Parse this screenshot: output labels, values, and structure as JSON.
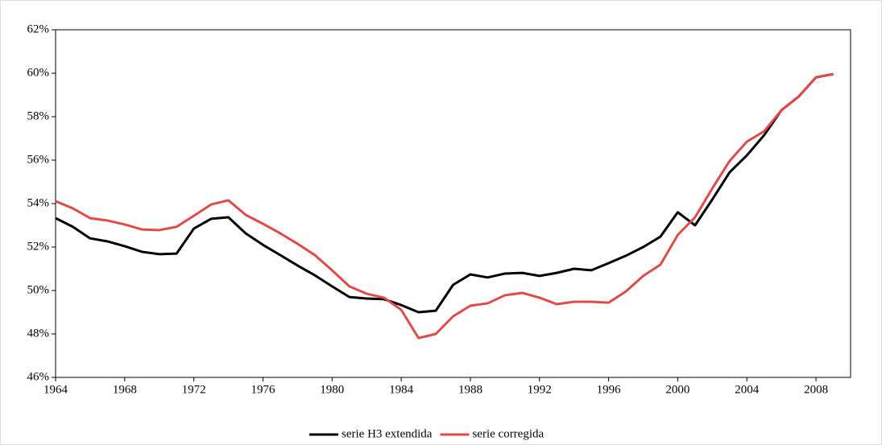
{
  "chart_data": {
    "type": "line",
    "x": [
      1964,
      1965,
      1966,
      1967,
      1968,
      1969,
      1970,
      1971,
      1972,
      1973,
      1974,
      1975,
      1976,
      1977,
      1978,
      1979,
      1980,
      1981,
      1982,
      1983,
      1984,
      1985,
      1986,
      1987,
      1988,
      1989,
      1990,
      1991,
      1992,
      1993,
      1994,
      1995,
      1996,
      1997,
      1998,
      1999,
      2000,
      2001,
      2002,
      2003,
      2004,
      2005,
      2006,
      2007,
      2008,
      2009
    ],
    "series": [
      {
        "name": "serie H3 extendida",
        "color": "#000000",
        "values": [
          53.33,
          52.93,
          52.4,
          52.26,
          52.04,
          51.78,
          51.67,
          51.7,
          52.85,
          53.3,
          53.37,
          52.63,
          52.1,
          51.63,
          51.15,
          50.7,
          50.19,
          49.7,
          49.63,
          49.6,
          49.33,
          49.0,
          49.07,
          50.26,
          50.74,
          50.6,
          50.78,
          50.81,
          50.67,
          50.81,
          51.0,
          50.93,
          51.26,
          51.6,
          52.0,
          52.48,
          53.6,
          53.0,
          54.19,
          55.44,
          56.22,
          57.15,
          58.3,
          58.93,
          59.81,
          59.96
        ]
      },
      {
        "name": "serie corregida",
        "color": "#e04a48",
        "values": [
          54.11,
          53.78,
          53.33,
          53.22,
          53.04,
          52.81,
          52.78,
          52.93,
          53.44,
          53.96,
          54.15,
          53.48,
          53.07,
          52.63,
          52.15,
          51.63,
          50.93,
          50.19,
          49.85,
          49.67,
          49.11,
          47.81,
          48.0,
          48.81,
          49.3,
          49.41,
          49.78,
          49.89,
          49.67,
          49.37,
          49.48,
          49.48,
          49.44,
          49.96,
          50.67,
          51.19,
          52.56,
          53.37,
          54.7,
          55.96,
          56.85,
          57.33,
          58.3,
          58.93,
          59.81,
          59.96
        ]
      }
    ],
    "xlim": [
      1964,
      2010
    ],
    "xticks": [
      1964,
      1968,
      1972,
      1976,
      1980,
      1984,
      1988,
      1992,
      1996,
      2000,
      2004,
      2008
    ],
    "ylim": [
      46,
      62
    ],
    "yticks": [
      {
        "value": 46,
        "label": "46%"
      },
      {
        "value": 48,
        "label": "48%"
      },
      {
        "value": 50,
        "label": "50%"
      },
      {
        "value": 52,
        "label": "52%"
      },
      {
        "value": 54,
        "label": "54%"
      },
      {
        "value": 56,
        "label": "56%"
      },
      {
        "value": 58,
        "label": "58%"
      },
      {
        "value": 60,
        "label": "60%"
      },
      {
        "value": 62,
        "label": "62%"
      }
    ],
    "legend": "bottom"
  }
}
